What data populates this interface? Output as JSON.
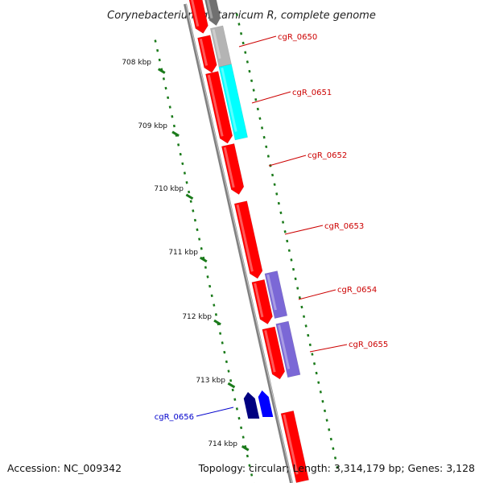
{
  "title": "Corynebacterium glutamicum R, complete genome",
  "footer": {
    "accession": "Accession: NC_009342",
    "summary": "Topology: circular; Length: 3,314,179 bp; Genes: 3,128"
  },
  "ruler": [
    "708 kbp",
    "709 kbp",
    "710 kbp",
    "711 kbp",
    "712 kbp",
    "713 kbp",
    "714 kbp"
  ],
  "gene_labels": [
    {
      "text": "cgR_0650",
      "color": "#cc0000"
    },
    {
      "text": "cgR_0651",
      "color": "#cc0000"
    },
    {
      "text": "cgR_0652",
      "color": "#cc0000"
    },
    {
      "text": "cgR_0653",
      "color": "#cc0000"
    },
    {
      "text": "cgR_0654",
      "color": "#cc0000"
    },
    {
      "text": "cgR_0655",
      "color": "#cc0000"
    },
    {
      "text": "cgR_0656",
      "color": "#0000cc"
    }
  ],
  "colors": {
    "backbone": "#808080",
    "ticks": "#1a7a1a",
    "gene_red": "#ff0000",
    "gene_gray": "#b4b4b4",
    "gene_cyan": "#00ffff",
    "gene_purple": "#7b68d6",
    "gene_navy": "#000080",
    "gene_blue": "#0000ff"
  }
}
